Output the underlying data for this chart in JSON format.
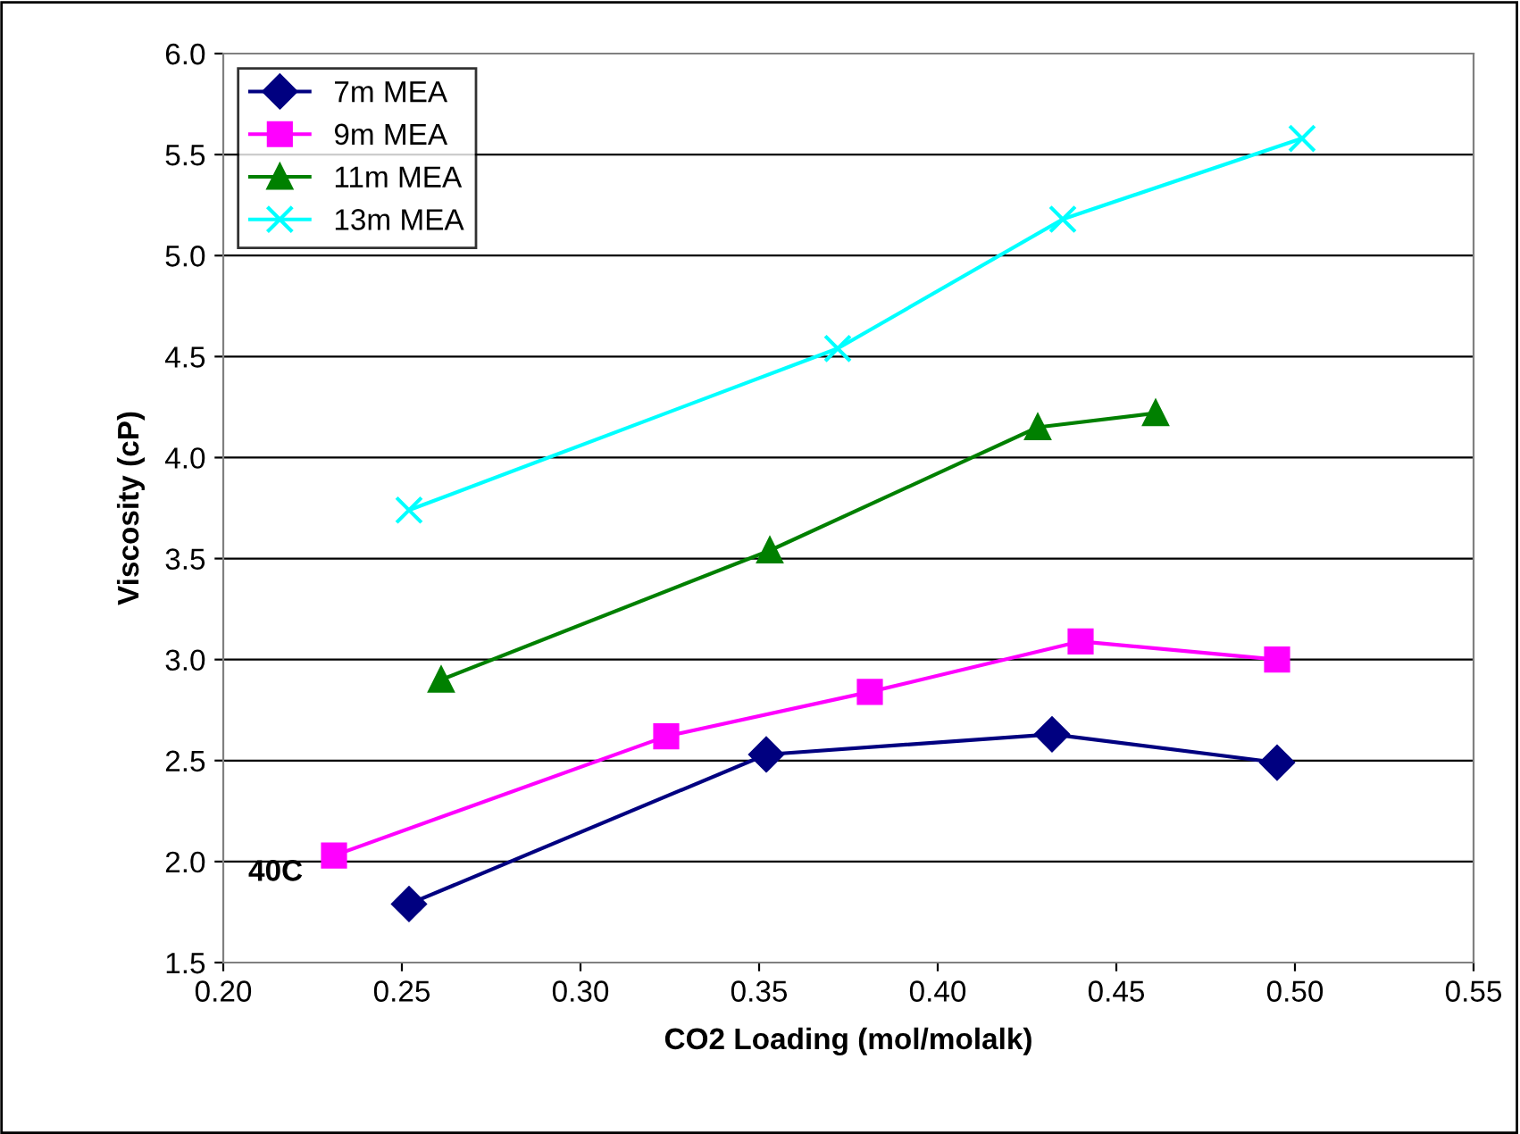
{
  "chart_data": {
    "type": "line",
    "xlabel": "CO2 Loading (mol/molalk)",
    "ylabel": "Viscosity (cP)",
    "xlim": [
      0.2,
      0.55
    ],
    "xticks": [
      {
        "value": 0.2,
        "label": "0.20"
      },
      {
        "value": 0.25,
        "label": "0.25"
      },
      {
        "value": 0.3,
        "label": "0.30"
      },
      {
        "value": 0.35,
        "label": "0.35"
      },
      {
        "value": 0.4,
        "label": "0.40"
      },
      {
        "value": 0.45,
        "label": "0.45"
      },
      {
        "value": 0.5,
        "label": "0.50"
      },
      {
        "value": 0.55,
        "label": "0.55"
      }
    ],
    "ylim": [
      1.5,
      6.0
    ],
    "yticks": [
      {
        "value": 1.5,
        "label": "1.5"
      },
      {
        "value": 2.0,
        "label": "2.0"
      },
      {
        "value": 2.5,
        "label": "2.5"
      },
      {
        "value": 3.0,
        "label": "3.0"
      },
      {
        "value": 3.5,
        "label": "3.5"
      },
      {
        "value": 4.0,
        "label": "4.0"
      },
      {
        "value": 4.5,
        "label": "4.5"
      },
      {
        "value": 5.0,
        "label": "5.0"
      },
      {
        "value": 5.5,
        "label": "5.5"
      },
      {
        "value": 6.0,
        "label": "6.0"
      }
    ],
    "grid": "y",
    "legend": "top left",
    "annotations": [
      "40C"
    ],
    "series": [
      {
        "name": "7m MEA",
        "color": "#000080",
        "marker": "diamond",
        "x": [
          0.252,
          0.352,
          0.432,
          0.495
        ],
        "values": [
          1.79,
          2.53,
          2.63,
          2.49
        ]
      },
      {
        "name": "9m MEA",
        "color": "#ff00ff",
        "marker": "square",
        "x": [
          0.231,
          0.324,
          0.381,
          0.44,
          0.495
        ],
        "values": [
          2.03,
          2.62,
          2.84,
          3.09,
          3.0
        ]
      },
      {
        "name": "11m MEA",
        "color": "#008000",
        "marker": "triangle",
        "x": [
          0.261,
          0.353,
          0.428,
          0.461
        ],
        "values": [
          2.9,
          3.54,
          4.15,
          4.22
        ]
      },
      {
        "name": "13m MEA",
        "color": "#00ffff",
        "marker": "cross",
        "x": [
          0.252,
          0.372,
          0.435,
          0.502
        ],
        "values": [
          3.74,
          4.54,
          5.18,
          5.58
        ]
      }
    ]
  }
}
